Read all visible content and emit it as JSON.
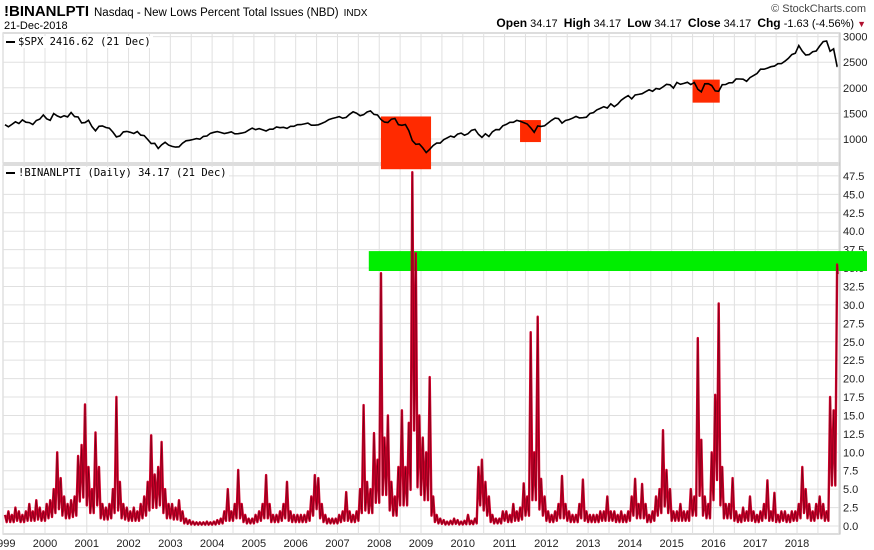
{
  "header": {
    "symbol": "!BINANLPTI",
    "description": "Nasdaq - New Lows Percent Total Issues (NBD)",
    "exchange": "INDX",
    "date": "21-Dec-2018",
    "brand": "© StockCharts.com",
    "open_label": "Open",
    "open": "34.17",
    "high_label": "High",
    "high": "34.17",
    "low_label": "Low",
    "low": "34.17",
    "close_label": "Close",
    "close": "34.17",
    "chg_label": "Chg",
    "chg": "-1.63 (-4.56%)",
    "chg_direction": "down",
    "down_color": "#b0102f"
  },
  "chart_data": [
    {
      "type": "line",
      "legend": "$SPX 2416.62 (21 Dec)",
      "series_color": "#000000",
      "ylim": [
        700,
        3050
      ],
      "yticks": [
        1000,
        1500,
        2000,
        2500,
        3000
      ],
      "grid": true,
      "start_year": 1999,
      "values_monthly_from_1999_01": [
        1280,
        1238,
        1286,
        1335,
        1302,
        1373,
        1329,
        1320,
        1283,
        1362,
        1389,
        1469,
        1394,
        1366,
        1499,
        1452,
        1421,
        1455,
        1431,
        1518,
        1437,
        1429,
        1315,
        1320,
        1366,
        1240,
        1160,
        1249,
        1256,
        1224,
        1211,
        1134,
        1041,
        1060,
        1139,
        1148,
        1130,
        1107,
        1147,
        1077,
        1067,
        990,
        912,
        916,
        815,
        886,
        936,
        880,
        856,
        841,
        848,
        917,
        964,
        975,
        990,
        1008,
        996,
        1051,
        1058,
        1112,
        1131,
        1145,
        1126,
        1107,
        1121,
        1141,
        1102,
        1104,
        1115,
        1130,
        1174,
        1212,
        1181,
        1204,
        1181,
        1157,
        1192,
        1191,
        1234,
        1220,
        1229,
        1207,
        1249,
        1248,
        1280,
        1281,
        1295,
        1311,
        1270,
        1270,
        1277,
        1304,
        1336,
        1378,
        1401,
        1418,
        1438,
        1407,
        1421,
        1482,
        1531,
        1503,
        1455,
        1474,
        1527,
        1549,
        1481,
        1468,
        1379,
        1331,
        1323,
        1386,
        1400,
        1280,
        1267,
        1283,
        1165,
        969,
        896,
        903,
        826,
        735,
        798,
        873,
        919,
        919,
        987,
        1021,
        1057,
        1036,
        1096,
        1115,
        1074,
        1104,
        1169,
        1187,
        1089,
        1031,
        1102,
        1049,
        1141,
        1183,
        1181,
        1258,
        1286,
        1327,
        1326,
        1364,
        1345,
        1321,
        1292,
        1219,
        1131,
        1253,
        1247,
        1258,
        1312,
        1366,
        1408,
        1398,
        1310,
        1362,
        1379,
        1406,
        1441,
        1412,
        1416,
        1426,
        1498,
        1515,
        1569,
        1598,
        1631,
        1606,
        1686,
        1633,
        1682,
        1757,
        1806,
        1848,
        1783,
        1859,
        1872,
        1884,
        1924,
        1960,
        1931,
        1987,
        1972,
        2018,
        2068,
        2059,
        1995,
        2105,
        2068,
        2086,
        2107,
        2063,
        2104,
        1972,
        1920,
        2079,
        2080,
        2044,
        1940,
        1932,
        2060,
        2065,
        2097,
        2099,
        2174,
        2171,
        2168,
        2126,
        2199,
        2239,
        2279,
        2364,
        2363,
        2384,
        2412,
        2423,
        2470,
        2472,
        2519,
        2575,
        2648,
        2674,
        2824,
        2714,
        2641,
        2648,
        2705,
        2718,
        2816,
        2902,
        2914,
        2712,
        2760,
        2417
      ],
      "last_value": 2416.62,
      "highlights": [
        {
          "from": 2008.04,
          "to": 2009.24,
          "top": 1440,
          "bottom": 410,
          "color": "#ff2a00"
        },
        {
          "from": 2011.37,
          "to": 2011.87,
          "top": 1370,
          "bottom": 940,
          "color": "#ff2a00"
        },
        {
          "from": 2015.5,
          "to": 2016.15,
          "top": 2160,
          "bottom": 1710,
          "color": "#ff2a00"
        }
      ]
    },
    {
      "type": "line",
      "legend": "!BINANLPTI (Daily) 34.17 (21 Dec)",
      "series_color": "#d0002a",
      "ylim": [
        -1,
        49
      ],
      "yticks": [
        "0.0",
        "2.5",
        "5.0",
        "7.5",
        "10.0",
        "12.5",
        "15.0",
        "17.5",
        "20.0",
        "22.5",
        "25.0",
        "27.5",
        "30.0",
        "32.5",
        "35.0",
        "37.5",
        "40.0",
        "42.5",
        "45.0",
        "47.5"
      ],
      "grid": true,
      "start_year": 1999,
      "values_monthly_from_1999_01": [
        1.5,
        2,
        1.5,
        2.5,
        2,
        1.5,
        2,
        3,
        2,
        3.5,
        2.5,
        2,
        3,
        3.5,
        5,
        10,
        6.5,
        4,
        3,
        3.5,
        4,
        9.5,
        11,
        16.5,
        8,
        5,
        12.7,
        8,
        3,
        2.5,
        3,
        5,
        17.5,
        6,
        3,
        2.5,
        2,
        2.5,
        2,
        3,
        4,
        6,
        12.3,
        7,
        8,
        11.4,
        5,
        3,
        3,
        2.5,
        3.5,
        2,
        1,
        0.8,
        0.6,
        0.5,
        0.5,
        0.5,
        0.6,
        0.5,
        0.6,
        0.8,
        1,
        2,
        5,
        2,
        3,
        7.6,
        3,
        1.5,
        1,
        1,
        1.5,
        2,
        3,
        6.9,
        3,
        1.5,
        1.5,
        2,
        3,
        6,
        2,
        1.5,
        1.5,
        1.5,
        1.5,
        2,
        4,
        6.9,
        6.5,
        3,
        1.5,
        1,
        1,
        1,
        1.5,
        2,
        4.6,
        2,
        1.5,
        2,
        5,
        16.4,
        6,
        5,
        12.6,
        9,
        34.3,
        12,
        15,
        6,
        4,
        8,
        15.7,
        8,
        14,
        48,
        37,
        15,
        12,
        10,
        20.2,
        4,
        1.5,
        1,
        0.8,
        0.6,
        0.7,
        1,
        0.8,
        0.6,
        0.7,
        1.5,
        0.7,
        1,
        8,
        9,
        6,
        4,
        1.5,
        1,
        1,
        2,
        2,
        1.5,
        3,
        2,
        2.5,
        5.8,
        4,
        26.3,
        10,
        28.4,
        6.4,
        4,
        2,
        1.5,
        2,
        3,
        6.8,
        3,
        2,
        1.5,
        1.5,
        3,
        6.3,
        2,
        1.5,
        1.5,
        1.5,
        2,
        2,
        4,
        2,
        2,
        1.5,
        2,
        1.5,
        2,
        4,
        6.4,
        3,
        5.7,
        3,
        1.5,
        2,
        4,
        5,
        13,
        7.6,
        5,
        2,
        2,
        3,
        2,
        2,
        5,
        4,
        25.5,
        11.7,
        4,
        3,
        10,
        17.8,
        30.2,
        8,
        3,
        3,
        6.5,
        2,
        1.5,
        2.5,
        2,
        4,
        2,
        1.5,
        2,
        3,
        6.2,
        2,
        4.5,
        1.5,
        2,
        2,
        1.5,
        2,
        2,
        3,
        8,
        5,
        3,
        2,
        3,
        4,
        3,
        2,
        17.5,
        15.7,
        35.5
      ],
      "last_value": 34.17,
      "highlights": [
        {
          "from": 2007.75,
          "to": "beyond-axis",
          "top": 37.3,
          "bottom": 34.6,
          "color": "#00ee00"
        }
      ]
    }
  ],
  "x_axis": {
    "labels": [
      "1999",
      "2000",
      "2001",
      "2002",
      "2003",
      "2004",
      "2005",
      "2006",
      "2007",
      "2008",
      "2009",
      "2010",
      "2011",
      "2012",
      "2013",
      "2014",
      "2015",
      "2016",
      "2017",
      "2018"
    ]
  }
}
